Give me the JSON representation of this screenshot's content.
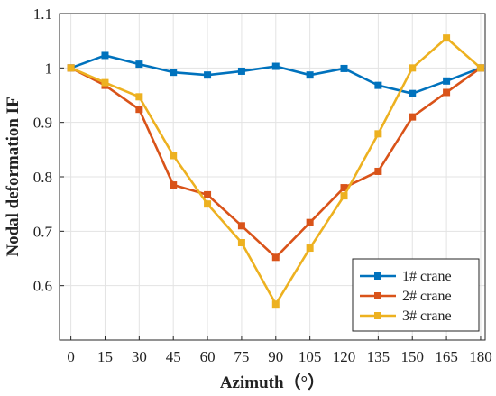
{
  "chart_data": {
    "type": "line",
    "xlabel": "Azimuth（°）",
    "ylabel": "Nodal deformation IF",
    "x": [
      0,
      15,
      30,
      45,
      60,
      75,
      90,
      105,
      120,
      135,
      150,
      165,
      180
    ],
    "xlim": [
      -5,
      182
    ],
    "ylim": [
      0.5,
      1.1
    ],
    "xticks": [
      0,
      15,
      30,
      45,
      60,
      75,
      90,
      105,
      120,
      135,
      150,
      165,
      180
    ],
    "yticks": [
      0.6,
      0.7,
      0.8,
      0.9,
      1,
      1.1
    ],
    "ytick_labels": [
      "0.6",
      "0.7",
      "0.8",
      "0.9",
      "1",
      "1.1"
    ],
    "grid": true,
    "legend_position": "bottom-right",
    "series": [
      {
        "name": "1# crane",
        "color": "#0072BD",
        "marker": "square",
        "values": [
          1.0,
          1.023,
          1.007,
          0.992,
          0.987,
          0.994,
          1.003,
          0.987,
          0.999,
          0.968,
          0.953,
          0.976,
          1.0
        ]
      },
      {
        "name": "2# crane",
        "color": "#D95319",
        "marker": "square",
        "values": [
          1.0,
          0.968,
          0.924,
          0.785,
          0.767,
          0.71,
          0.652,
          0.716,
          0.78,
          0.81,
          0.91,
          0.955,
          1.0
        ]
      },
      {
        "name": "3# crane",
        "color": "#EDB120",
        "marker": "square",
        "values": [
          1.0,
          0.973,
          0.947,
          0.839,
          0.75,
          0.679,
          0.566,
          0.669,
          0.765,
          0.879,
          1.0,
          1.055,
          1.0
        ]
      }
    ]
  }
}
